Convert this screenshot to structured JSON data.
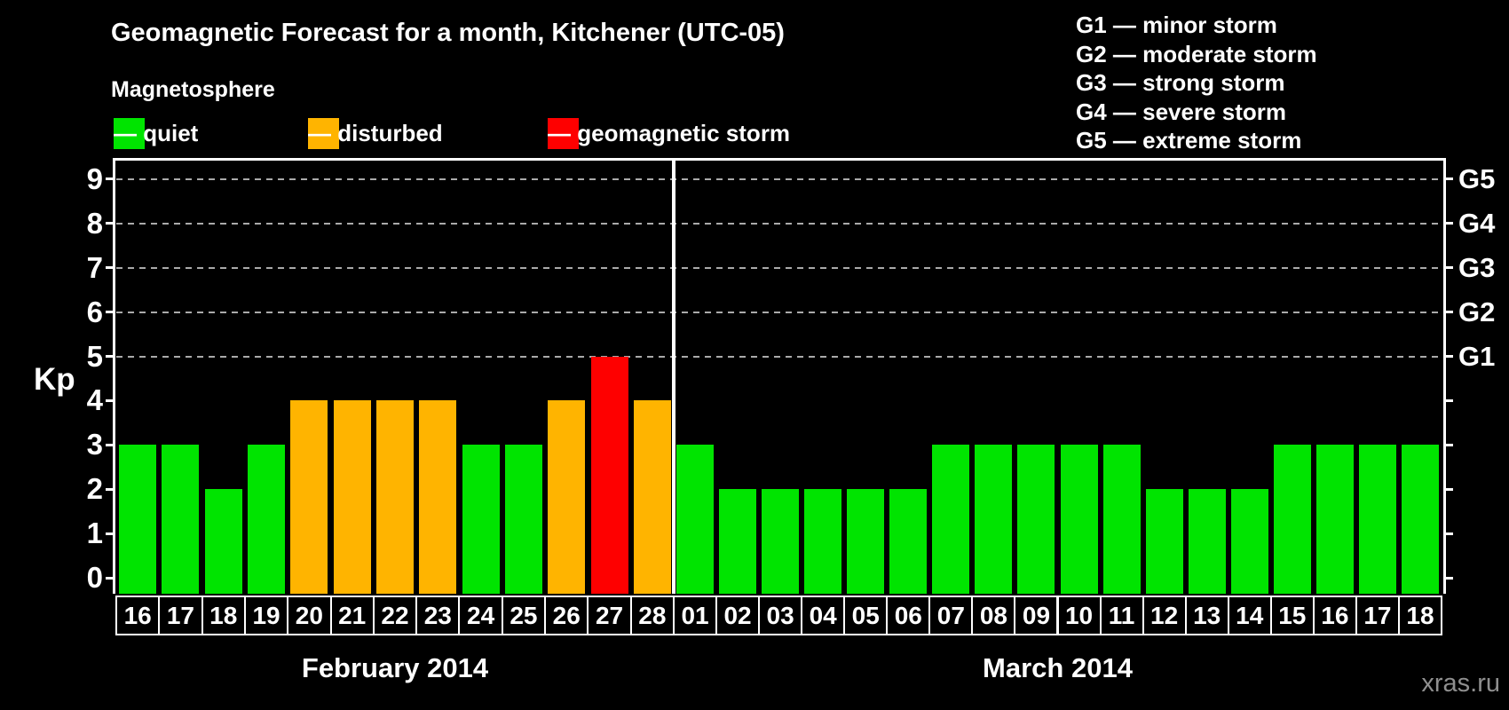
{
  "title": "Geomagnetic Forecast for a month, Kitchener (UTC-05)",
  "magnetosphere": {
    "heading": "Magnetosphere",
    "items": [
      {
        "name": "quiet",
        "label": "— quiet",
        "color": "#00e400"
      },
      {
        "name": "disturbed",
        "label": "— disturbed",
        "color": "#ffb400"
      },
      {
        "name": "storm",
        "label": "— geomagnetic storm",
        "color": "#fe0000"
      }
    ]
  },
  "g_legend": [
    {
      "code": "G1",
      "text": "G1 — minor storm",
      "kp": 5
    },
    {
      "code": "G2",
      "text": "G2 — moderate storm",
      "kp": 6
    },
    {
      "code": "G3",
      "text": "G3 — strong storm",
      "kp": 7
    },
    {
      "code": "G4",
      "text": "G4 — severe storm",
      "kp": 8
    },
    {
      "code": "G5",
      "text": "G5 — extreme storm",
      "kp": 9
    }
  ],
  "chart_data": {
    "type": "bar",
    "title": "Geomagnetic Forecast for a month, Kitchener (UTC-05)",
    "ylabel": "Kp",
    "ylim": [
      -0.4,
      9.4
    ],
    "yticks": [
      0,
      1,
      2,
      3,
      4,
      5,
      6,
      7,
      8,
      9
    ],
    "gridlines_at_kp": [
      5,
      6,
      7,
      8,
      9
    ],
    "grid": "dashed horizontal at storm levels only",
    "legend_position": "top-left",
    "right_axis": {
      "labels": [
        "G1",
        "G2",
        "G3",
        "G4",
        "G5"
      ],
      "at_kp": [
        5,
        6,
        7,
        8,
        9
      ]
    },
    "status_colors": {
      "quiet": "#00e400",
      "disturbed": "#ffb400",
      "storm": "#fe0000"
    },
    "months": [
      {
        "label": "February 2014",
        "days": [
          "16",
          "17",
          "18",
          "19",
          "20",
          "21",
          "22",
          "23",
          "24",
          "25",
          "26",
          "27",
          "28"
        ],
        "kp": [
          3,
          3,
          2,
          3,
          4,
          4,
          4,
          4,
          3,
          3,
          4,
          5,
          4
        ],
        "status": [
          "quiet",
          "quiet",
          "quiet",
          "quiet",
          "disturbed",
          "disturbed",
          "disturbed",
          "disturbed",
          "quiet",
          "quiet",
          "disturbed",
          "storm",
          "disturbed"
        ]
      },
      {
        "label": "March 2014",
        "days": [
          "01",
          "02",
          "03",
          "04",
          "05",
          "06",
          "07",
          "08",
          "09",
          "10",
          "11",
          "12",
          "13",
          "14",
          "15",
          "16",
          "17",
          "18"
        ],
        "kp": [
          3,
          2,
          2,
          2,
          2,
          2,
          3,
          3,
          3,
          3,
          3,
          2,
          2,
          2,
          3,
          3,
          3,
          3
        ],
        "status": [
          "quiet",
          "quiet",
          "quiet",
          "quiet",
          "quiet",
          "quiet",
          "quiet",
          "quiet",
          "quiet",
          "quiet",
          "quiet",
          "quiet",
          "quiet",
          "quiet",
          "quiet",
          "quiet",
          "quiet",
          "quiet"
        ]
      }
    ]
  },
  "watermark": "xras.ru",
  "colors": {
    "background": "#000000",
    "text": "#ffffff",
    "gridline": "#aaaaaa",
    "axis": "#ffffff",
    "watermark": "#8f8f8f"
  }
}
